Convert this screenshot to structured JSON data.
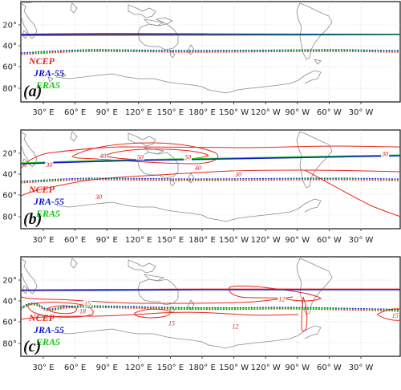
{
  "colors": {
    "ncep": "#e8261c",
    "jra55": "#1018c8",
    "era5": "#12c812",
    "land": "#8a8a8a",
    "frame": "#222222"
  },
  "lon_ticks": [
    "30° E",
    "60° E",
    "90° E",
    "120° E",
    "150° E",
    "180° E",
    "150° W",
    "120° W",
    "90° W",
    "60° W",
    "30° W"
  ],
  "lat_ticks": [
    "20°",
    "40°",
    "60°",
    "80°"
  ],
  "legend": [
    {
      "label": "NCEP",
      "color": "#e8261c"
    },
    {
      "label": "JRA-55",
      "color": "#1018c8"
    },
    {
      "label": "ERA5",
      "color": "#12c812"
    }
  ],
  "panels": [
    {
      "label": "(a)",
      "contours": []
    },
    {
      "label": "(b)",
      "contours": [
        {
          "text": "30",
          "lon": 28,
          "lat": -32
        },
        {
          "text": "40",
          "lon": 81,
          "lat": -24
        },
        {
          "text": "50",
          "lon": 118,
          "lat": -25
        },
        {
          "text": "50",
          "lon": 165,
          "lat": -25
        },
        {
          "text": "40",
          "lon": 175,
          "lat": -35
        },
        {
          "text": "30",
          "lon": 215,
          "lat": -41
        },
        {
          "text": "30",
          "lon": 360,
          "lat": -22
        },
        {
          "text": "30",
          "lon": 77,
          "lat": -62
        }
      ]
    },
    {
      "label": "(c)",
      "contours": [
        {
          "text": "15",
          "lon": 66,
          "lat": -43
        },
        {
          "text": "18",
          "lon": 61,
          "lat": -50
        },
        {
          "text": "15",
          "lon": 149,
          "lat": -61
        },
        {
          "text": "12",
          "lon": 258,
          "lat": -39
        },
        {
          "text": "12",
          "lon": 212,
          "lat": -64
        },
        {
          "text": "15",
          "lon": 370,
          "lat": -54
        }
      ]
    }
  ]
}
